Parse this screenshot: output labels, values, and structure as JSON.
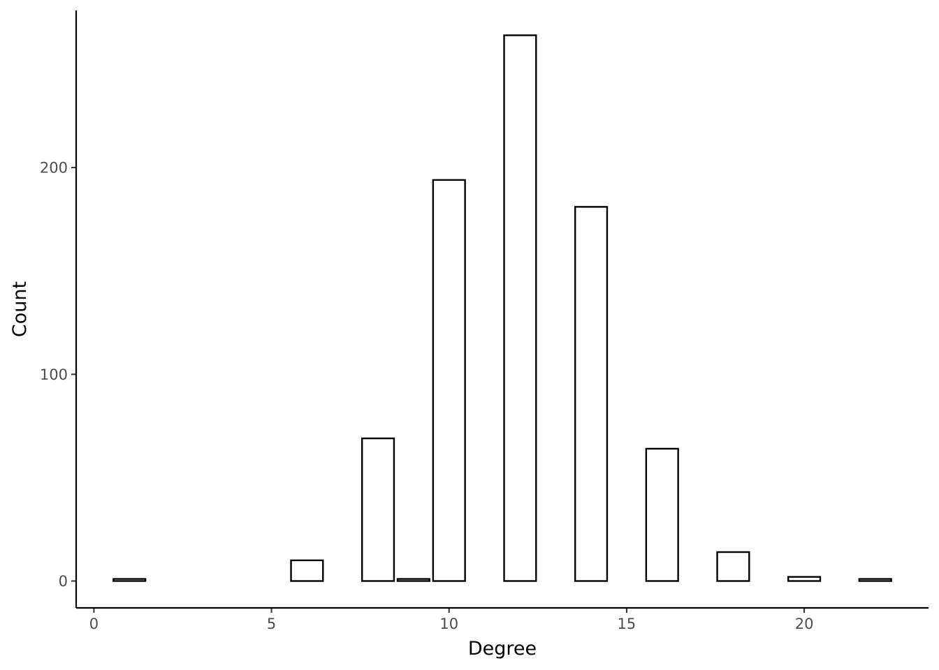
{
  "chart_data": {
    "type": "bar",
    "title": "",
    "xlabel": "Degree",
    "ylabel": "Count",
    "x": [
      1,
      6,
      8,
      9,
      10,
      12,
      14,
      16,
      18,
      20,
      22
    ],
    "values": [
      1,
      10,
      69,
      1,
      194,
      264,
      181,
      64,
      14,
      2,
      1
    ],
    "xlim": [
      -0.5,
      23.5
    ],
    "ylim": [
      -13,
      276
    ],
    "xticks": [
      0,
      5,
      10,
      15,
      20
    ],
    "yticks": [
      0,
      100,
      200
    ],
    "xtick_labels": [
      "0",
      "5",
      "10",
      "15",
      "20"
    ],
    "ytick_labels": [
      "0",
      "100",
      "200"
    ],
    "bar_width": 0.9,
    "bar_fill": "#ffffff",
    "bar_stroke": "#000000",
    "grid": false,
    "legend": "none"
  }
}
